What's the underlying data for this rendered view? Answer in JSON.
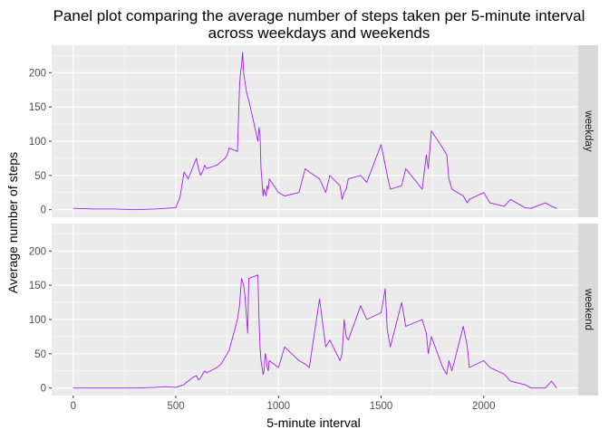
{
  "chart_data": {
    "type": "line",
    "title": "Panel plot comparing the average number of steps taken per 5-minute interval",
    "subtitle": "across weekdays and weekends",
    "xlabel": "5-minute interval",
    "ylabel": "Average number of steps",
    "xlim": [
      -105,
      2460
    ],
    "ylim": [
      -11,
      240
    ],
    "x_ticks": [
      0,
      500,
      1000,
      1500,
      2000
    ],
    "x_tick_labels": [
      "0",
      "500",
      "1000",
      "1500",
      "2000"
    ],
    "y_ticks": [
      0,
      50,
      100,
      150,
      200
    ],
    "y_tick_labels": [
      "0",
      "50",
      "100",
      "150",
      "200"
    ],
    "grid": true,
    "legend": "none",
    "facet": "panels stacked vertically, strip labels on right",
    "series": [
      {
        "name": "weekday",
        "color": "#a020f0",
        "x": [
          0,
          100,
          200,
          300,
          400,
          450,
          500,
          520,
          540,
          550,
          560,
          580,
          600,
          610,
          620,
          630,
          640,
          650,
          700,
          720,
          740,
          750,
          760,
          800,
          810,
          815,
          820,
          825,
          830,
          835,
          840,
          845,
          850,
          855,
          900,
          905,
          910,
          915,
          920,
          925,
          930,
          935,
          940,
          945,
          950,
          955,
          1000,
          1030,
          1100,
          1130,
          1150,
          1200,
          1230,
          1250,
          1300,
          1310,
          1320,
          1330,
          1340,
          1400,
          1430,
          1500,
          1520,
          1530,
          1545,
          1600,
          1620,
          1700,
          1720,
          1730,
          1745,
          1800,
          1820,
          1830,
          1845,
          1900,
          1920,
          1930,
          2000,
          2030,
          2100,
          2130,
          2200,
          2230,
          2300,
          2330,
          2355
        ],
        "values": [
          2,
          1,
          1,
          0,
          1,
          2,
          3,
          18,
          55,
          50,
          45,
          60,
          75,
          60,
          50,
          55,
          65,
          60,
          65,
          70,
          75,
          80,
          90,
          85,
          180,
          200,
          210,
          230,
          200,
          190,
          180,
          170,
          165,
          160,
          100,
          120,
          110,
          60,
          40,
          20,
          30,
          25,
          20,
          35,
          30,
          45,
          25,
          20,
          25,
          60,
          55,
          45,
          25,
          50,
          35,
          15,
          25,
          30,
          45,
          50,
          40,
          95,
          65,
          50,
          30,
          35,
          60,
          30,
          80,
          60,
          115,
          90,
          80,
          45,
          30,
          20,
          10,
          15,
          25,
          10,
          5,
          15,
          3,
          2,
          10,
          5,
          2
        ]
      },
      {
        "name": "weekend",
        "color": "#a020f0",
        "x": [
          0,
          100,
          200,
          300,
          400,
          450,
          500,
          520,
          540,
          550,
          560,
          580,
          600,
          610,
          620,
          630,
          640,
          650,
          700,
          720,
          740,
          750,
          760,
          800,
          810,
          815,
          820,
          825,
          830,
          835,
          840,
          845,
          850,
          855,
          900,
          905,
          910,
          915,
          920,
          925,
          930,
          935,
          940,
          945,
          950,
          955,
          1000,
          1030,
          1100,
          1130,
          1150,
          1200,
          1230,
          1250,
          1300,
          1310,
          1320,
          1330,
          1340,
          1400,
          1430,
          1500,
          1520,
          1530,
          1545,
          1600,
          1620,
          1700,
          1720,
          1730,
          1745,
          1800,
          1820,
          1830,
          1845,
          1900,
          1920,
          1930,
          2000,
          2030,
          2100,
          2130,
          2200,
          2230,
          2300,
          2330,
          2355
        ],
        "values": [
          0,
          0,
          0,
          0,
          1,
          2,
          1,
          3,
          5,
          8,
          10,
          15,
          18,
          12,
          14,
          20,
          25,
          22,
          30,
          35,
          45,
          50,
          55,
          100,
          120,
          140,
          160,
          155,
          150,
          140,
          120,
          100,
          80,
          160,
          165,
          100,
          60,
          40,
          30,
          20,
          25,
          50,
          45,
          30,
          25,
          40,
          30,
          60,
          40,
          35,
          30,
          130,
          60,
          70,
          40,
          50,
          100,
          75,
          70,
          120,
          100,
          110,
          145,
          85,
          60,
          125,
          90,
          100,
          80,
          50,
          75,
          30,
          20,
          40,
          25,
          90,
          60,
          30,
          40,
          30,
          20,
          10,
          5,
          0,
          0,
          10,
          0
        ]
      }
    ]
  }
}
